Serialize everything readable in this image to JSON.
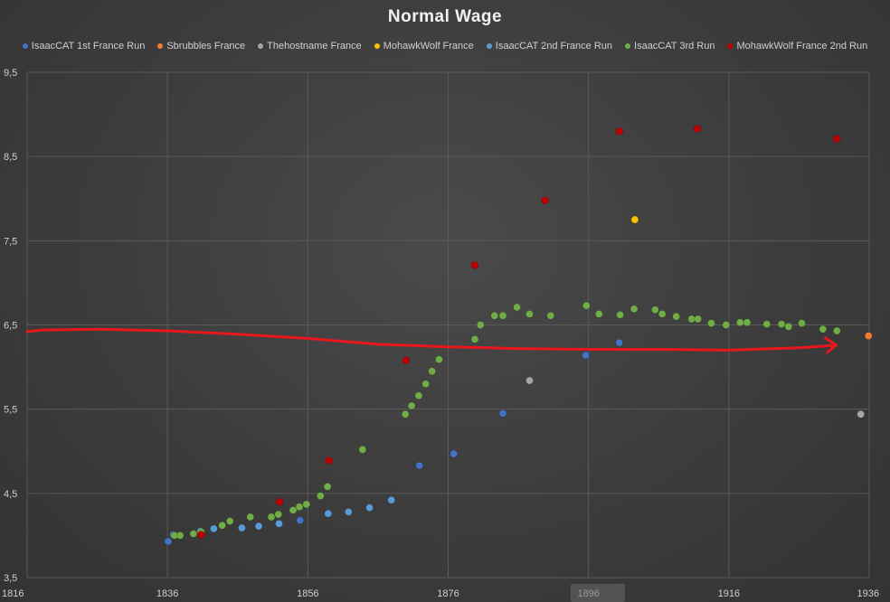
{
  "chart_data": {
    "type": "scatter",
    "title": "Normal Wage",
    "xlabel": "",
    "ylabel": "",
    "xlim": [
      1816,
      1936
    ],
    "ylim": [
      3.5,
      9.5
    ],
    "x_ticks": [
      "1816",
      "1836",
      "1856",
      "1876",
      "1896",
      "1916",
      "1936"
    ],
    "y_ticks": [
      "3,5",
      "4,5",
      "5,5",
      "6,5",
      "7,5",
      "8,5",
      "9,5"
    ],
    "grid": true,
    "legend_position": "top",
    "series": [
      {
        "name": "IsaacCAT 1st France Run",
        "color": "#4472c4",
        "points": [
          [
            1836.1,
            3.93
          ],
          [
            1836.8,
            4.01
          ],
          [
            1854.9,
            4.18
          ],
          [
            1871.9,
            4.83
          ],
          [
            1876.8,
            4.97
          ],
          [
            1883.8,
            5.45
          ],
          [
            1895.6,
            6.14
          ],
          [
            1900.4,
            6.29
          ]
        ]
      },
      {
        "name": "Sbrubbles France",
        "color": "#ed7d31",
        "points": [
          [
            1935.9,
            6.37
          ]
        ]
      },
      {
        "name": "Thehostname France",
        "color": "#a5a5a5",
        "points": [
          [
            1887.6,
            5.84
          ],
          [
            1934.8,
            5.44
          ]
        ]
      },
      {
        "name": "MohawkWolf France",
        "color": "#ffc000",
        "points": [
          [
            1902.6,
            7.75
          ]
        ]
      },
      {
        "name": "IsaacCAT 2nd France Run",
        "color": "#5b9bd5",
        "points": [
          [
            1840.7,
            4.05
          ],
          [
            1842.6,
            4.08
          ],
          [
            1846.6,
            4.09
          ],
          [
            1849.0,
            4.11
          ],
          [
            1851.9,
            4.14
          ],
          [
            1858.9,
            4.26
          ],
          [
            1861.8,
            4.28
          ],
          [
            1864.8,
            4.33
          ],
          [
            1867.9,
            4.42
          ]
        ]
      },
      {
        "name": "IsaacCAT 3rd Run",
        "color": "#70ad47",
        "points": [
          [
            1837.0,
            4.0
          ],
          [
            1837.8,
            4.0
          ],
          [
            1839.7,
            4.02
          ],
          [
            1840.8,
            4.04
          ],
          [
            1843.8,
            4.12
          ],
          [
            1844.9,
            4.17
          ],
          [
            1847.8,
            4.22
          ],
          [
            1850.8,
            4.22
          ],
          [
            1851.8,
            4.25
          ],
          [
            1853.9,
            4.3
          ],
          [
            1854.8,
            4.34
          ],
          [
            1855.8,
            4.37
          ],
          [
            1857.8,
            4.47
          ],
          [
            1858.8,
            4.58
          ],
          [
            1863.8,
            5.02
          ],
          [
            1869.9,
            5.44
          ],
          [
            1870.8,
            5.54
          ],
          [
            1871.8,
            5.66
          ],
          [
            1872.8,
            5.8
          ],
          [
            1873.7,
            5.95
          ],
          [
            1874.7,
            6.09
          ],
          [
            1879.8,
            6.33
          ],
          [
            1880.6,
            6.5
          ],
          [
            1882.6,
            6.61
          ],
          [
            1883.8,
            6.61
          ],
          [
            1885.8,
            6.71
          ],
          [
            1887.6,
            6.63
          ],
          [
            1890.6,
            6.61
          ],
          [
            1895.7,
            6.73
          ],
          [
            1897.5,
            6.63
          ],
          [
            1900.5,
            6.62
          ],
          [
            1902.5,
            6.69
          ],
          [
            1905.5,
            6.68
          ],
          [
            1906.5,
            6.63
          ],
          [
            1908.5,
            6.6
          ],
          [
            1910.7,
            6.57
          ],
          [
            1911.6,
            6.57
          ],
          [
            1913.5,
            6.52
          ],
          [
            1915.6,
            6.5
          ],
          [
            1917.6,
            6.53
          ],
          [
            1918.6,
            6.53
          ],
          [
            1921.4,
            6.51
          ],
          [
            1923.5,
            6.51
          ],
          [
            1924.5,
            6.48
          ],
          [
            1926.4,
            6.52
          ],
          [
            1929.4,
            6.45
          ],
          [
            1931.4,
            6.43
          ]
        ]
      },
      {
        "name": "MohawkWolf France 2nd Run",
        "color": "#c00000",
        "points": [
          [
            1840.8,
            4.01
          ],
          [
            1852.0,
            4.4
          ],
          [
            1859.0,
            4.89
          ],
          [
            1870.0,
            6.08
          ],
          [
            1879.8,
            7.21
          ],
          [
            1889.8,
            7.98
          ],
          [
            1900.4,
            8.8
          ],
          [
            1911.5,
            8.83
          ],
          [
            1931.4,
            8.71
          ]
        ]
      }
    ],
    "annotations": [
      {
        "type": "hand-drawn-arrow",
        "color": "#e8171c",
        "points": [
          [
            1816,
            6.42
          ],
          [
            1818,
            6.44
          ],
          [
            1826,
            6.45
          ],
          [
            1836,
            6.43
          ],
          [
            1846,
            6.39
          ],
          [
            1856,
            6.34
          ],
          [
            1866,
            6.27
          ],
          [
            1876,
            6.24
          ],
          [
            1886,
            6.22
          ],
          [
            1896,
            6.21
          ],
          [
            1906,
            6.21
          ],
          [
            1916,
            6.2
          ],
          [
            1926,
            6.23
          ],
          [
            1931.3,
            6.26
          ]
        ]
      }
    ]
  }
}
